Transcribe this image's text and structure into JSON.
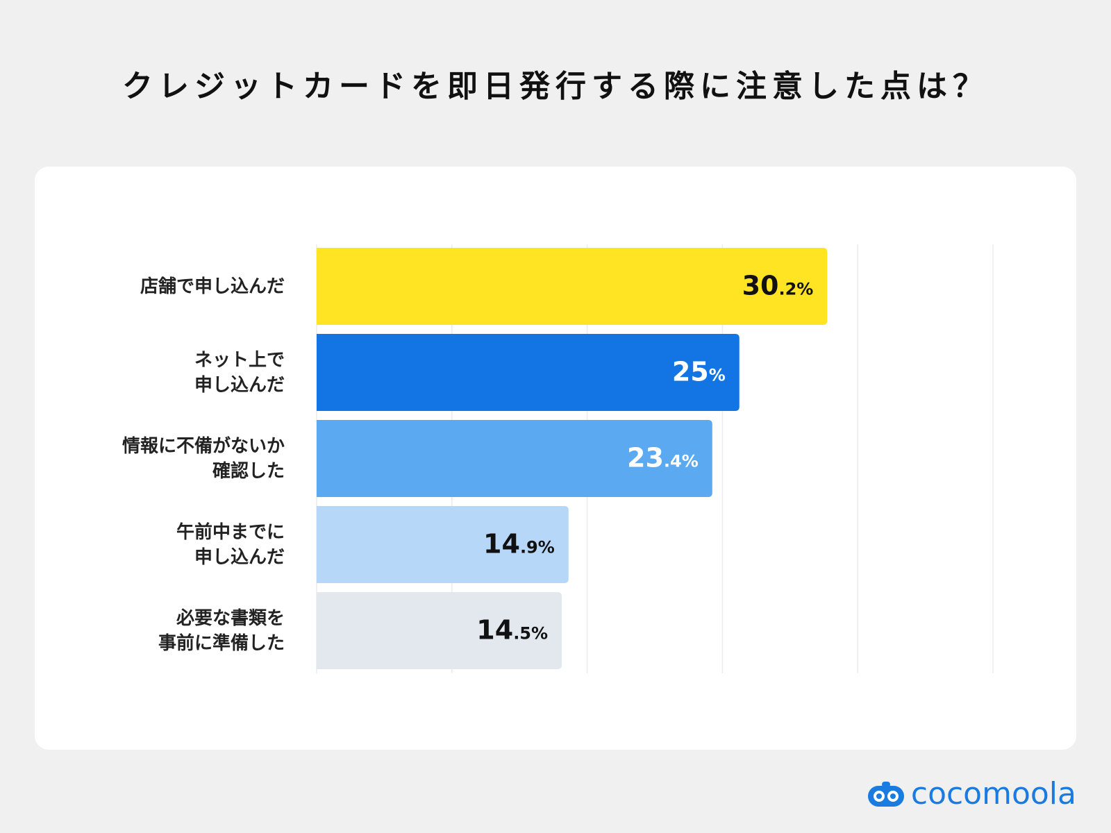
{
  "chart_data": {
    "type": "bar",
    "orientation": "horizontal",
    "title": "クレジットカードを即日発行する際に注意した点は？",
    "categories": [
      "店舗で申し込んだ",
      "ネット上で\n申し込んだ",
      "情報に不備がないか\n確認した",
      "午前中までに\n申し込んだ",
      "必要な書類を\n事前に準備した"
    ],
    "values": [
      30.2,
      25,
      23.4,
      14.9,
      14.5
    ],
    "value_labels": [
      "30.2%",
      "25%",
      "23.4%",
      "14.9%",
      "14.5%"
    ],
    "colors": [
      "#ffe424",
      "#1275e3",
      "#5ba9f1",
      "#b6d7f8",
      "#e3e8ef"
    ],
    "value_label_colors": [
      "#111111",
      "#ffffff",
      "#ffffff",
      "#111111",
      "#111111"
    ],
    "xlim": [
      0,
      40
    ],
    "xticks": [
      0,
      8,
      16,
      24,
      32,
      40
    ],
    "grid": true
  },
  "footer": {
    "brand": "cocomoola"
  }
}
